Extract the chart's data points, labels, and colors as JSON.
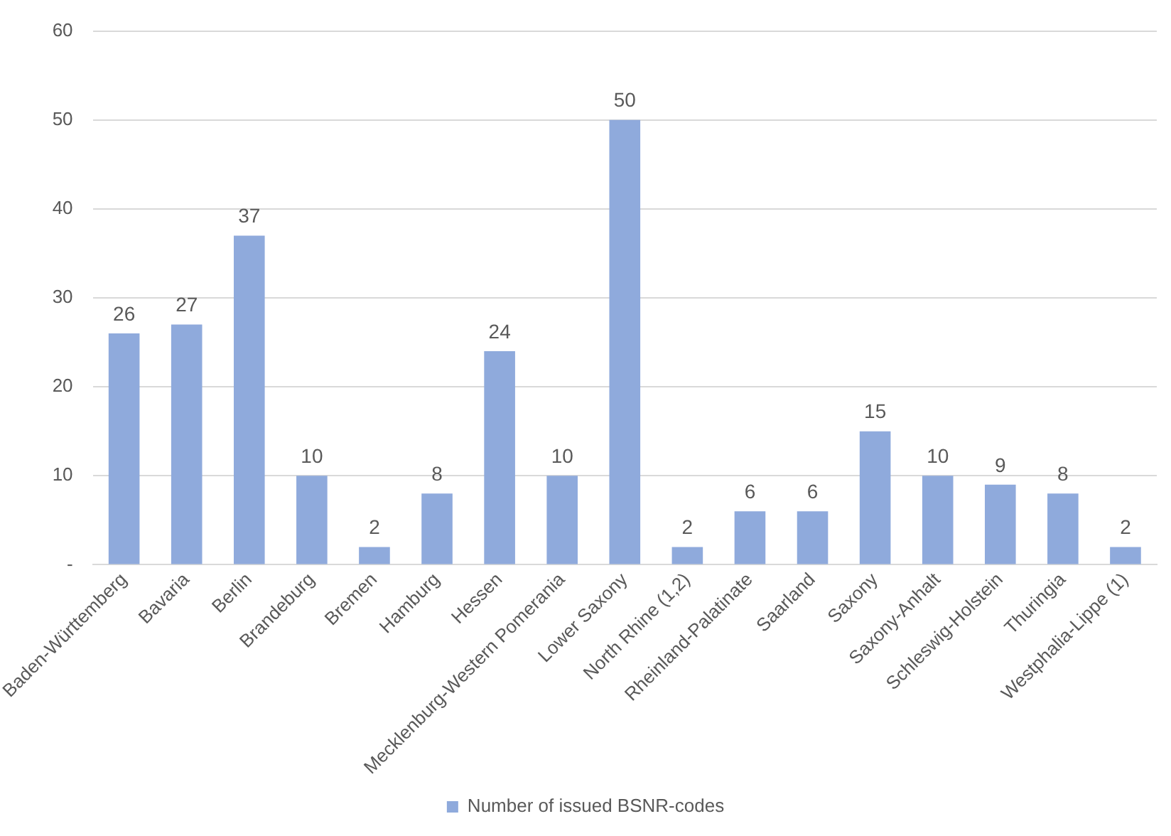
{
  "chart_data": {
    "type": "bar",
    "categories": [
      "Baden-Württemberg",
      "Bavaria",
      "Berlin",
      "Brandeburg",
      "Bremen",
      "Hamburg",
      "Hessen",
      "Mecklenburg-Western Pomerania",
      "Lower Saxony",
      "North Rhine (1,2)",
      "Rheinland-Palatinate",
      "Saarland",
      "Saxony",
      "Saxony-Anhalt",
      "Schleswig-Holstein",
      "Thuringia",
      "Westphalia-Lippe (1)"
    ],
    "series": [
      {
        "name": "Number of issued BSNR-codes",
        "color": "#8faadc",
        "values": [
          26,
          27,
          37,
          10,
          2,
          8,
          24,
          10,
          50,
          2,
          6,
          6,
          15,
          10,
          9,
          8,
          2
        ]
      }
    ],
    "ylim": [
      0,
      60
    ],
    "yticks": [
      {
        "value": 0,
        "label": "-"
      },
      10,
      20,
      30,
      40,
      50,
      60
    ],
    "grid": "y",
    "legend": "bottom",
    "data_labels": true
  }
}
